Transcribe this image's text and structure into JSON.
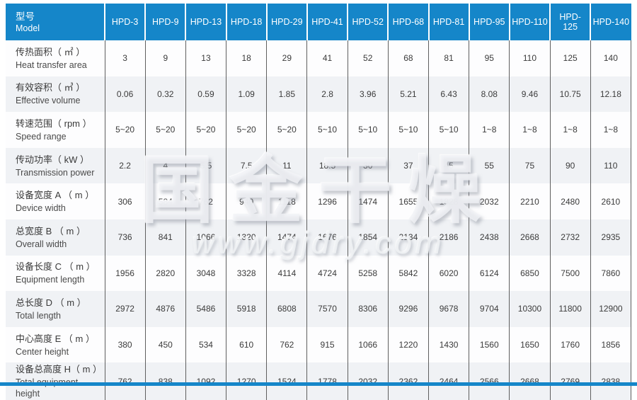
{
  "colors": {
    "header_bg": "#1586c9",
    "header_text": "#ffffff",
    "row_bg": "#fdfdfe",
    "row_alt_bg": "#f0f2f5",
    "grid_line": "#5f5f5f",
    "bottom_bar": "#1586c9"
  },
  "header": {
    "model_label_zh": "型号",
    "model_label_en": "Model",
    "columns": [
      "HPD-3",
      "HPD-9",
      "HPD-13",
      "HPD-18",
      "HPD-29",
      "HPD-41",
      "HPD-52",
      "HPD-68",
      "HPD-81",
      "HPD-95",
      "HPD-110",
      "HPD-125",
      "HPD-140"
    ]
  },
  "rows": [
    {
      "label_zh": "传热面积（ ㎡ ）",
      "label_en": "Heat transfer area",
      "values": [
        "3",
        "9",
        "13",
        "18",
        "29",
        "41",
        "52",
        "68",
        "81",
        "95",
        "110",
        "125",
        "140"
      ]
    },
    {
      "label_zh": "有效容积（ ㎥ ）",
      "label_en": "Effective volume",
      "values": [
        "0.06",
        "0.32",
        "0.59",
        "1.09",
        "1.85",
        "2.8",
        "3.96",
        "5.21",
        "6.43",
        "8.08",
        "9.46",
        "10.75",
        "12.18"
      ]
    },
    {
      "label_zh": "转速范围（ rpm ）",
      "label_en": "Speed range",
      "values": [
        "5~20",
        "5~20",
        "5~20",
        "5~20",
        "5~20",
        "5~10",
        "5~10",
        "5~10",
        "5~10",
        "1~8",
        "1~8",
        "1~8",
        "1~8"
      ]
    },
    {
      "label_zh": "传动功率（ kW ）",
      "label_en": "Transmission power",
      "values": [
        "2.2",
        "4",
        "5.5",
        "7.5",
        "11",
        "18.5",
        "30",
        "37",
        "45",
        "55",
        "75",
        "90",
        "110"
      ]
    },
    {
      "label_zh": "设备宽度 A （ m ）",
      "label_en": "Device width",
      "values": [
        "306",
        "584",
        "762",
        "940",
        "1118",
        "1296",
        "1474",
        "1655",
        "1828",
        "2032",
        "2210",
        "2480",
        "2610"
      ]
    },
    {
      "label_zh": "总宽度 B （ m ）",
      "label_en": "Overall width",
      "values": [
        "736",
        "841",
        "1066",
        "1320",
        "1474",
        "1676",
        "1854",
        "2134",
        "2186",
        "2438",
        "2668",
        "2732",
        "2935"
      ]
    },
    {
      "label_zh": "设备长度 C （ m ）",
      "label_en": "Equipment length",
      "values": [
        "1956",
        "2820",
        "3048",
        "3328",
        "4114",
        "4724",
        "5258",
        "5842",
        "6020",
        "6124",
        "6850",
        "7500",
        "7860"
      ]
    },
    {
      "label_zh": "总长度 D （ m ）",
      "label_en": "Total length",
      "values": [
        "2972",
        "4876",
        "5486",
        "5918",
        "6808",
        "7570",
        "8306",
        "9296",
        "9678",
        "9704",
        "10300",
        "11800",
        "12900"
      ]
    },
    {
      "label_zh": "中心高度 E （ m ）",
      "label_en": "Center height",
      "values": [
        "380",
        "450",
        "534",
        "610",
        "762",
        "915",
        "1066",
        "1220",
        "1430",
        "1560",
        "1650",
        "1760",
        "1856"
      ]
    },
    {
      "label_zh": "设备总高度 H（ m ）",
      "label_en": "Total equipment height",
      "values": [
        "762",
        "838",
        "1092",
        "1270",
        "1524",
        "1778",
        "2032",
        "2362",
        "2464",
        "2566",
        "2668",
        "2769",
        "2838"
      ]
    }
  ],
  "watermark": {
    "brand_text": "国金干燥",
    "url_text": "www.gjdry.com"
  }
}
